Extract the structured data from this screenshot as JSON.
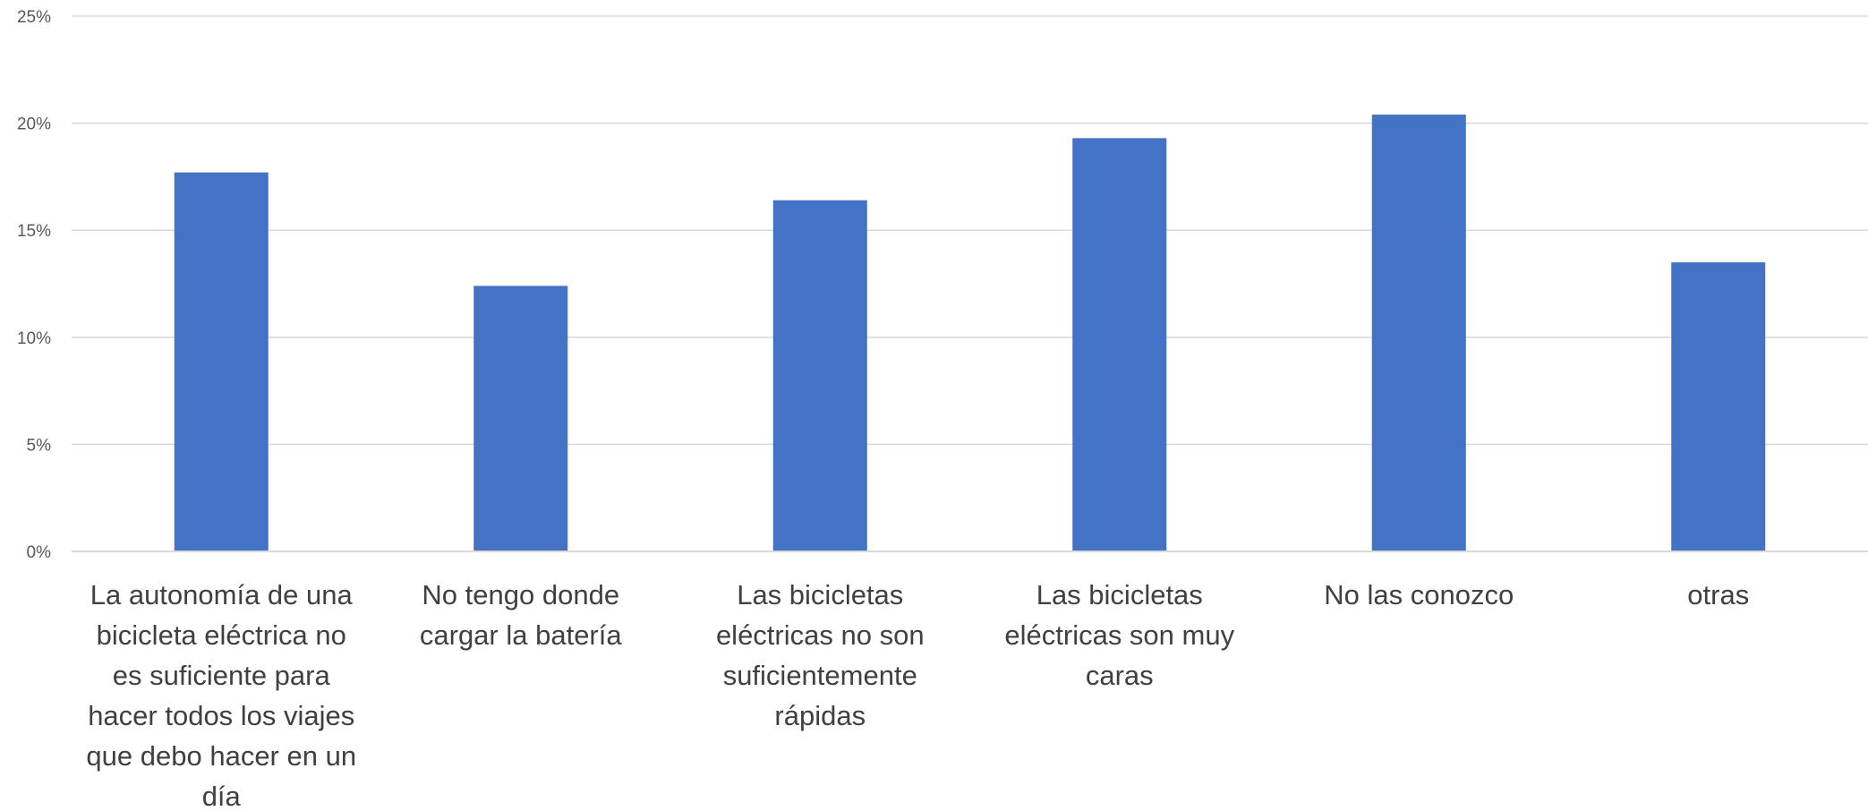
{
  "chart_data": {
    "type": "bar",
    "categories": [
      [
        "La autonomía de una",
        "bicicleta eléctrica no",
        "es suficiente para",
        "hacer todos los viajes",
        "que debo hacer en un",
        "día"
      ],
      [
        "No tengo donde",
        "cargar la batería"
      ],
      [
        "Las bicicletas",
        "eléctricas no son",
        "suficientemente",
        "rápidas"
      ],
      [
        "Las bicicletas",
        "eléctricas son muy",
        "caras"
      ],
      [
        "No las conozco"
      ],
      [
        "otras"
      ]
    ],
    "values": [
      17.7,
      12.4,
      16.4,
      19.3,
      20.4,
      13.5
    ],
    "ylim": [
      0,
      25
    ],
    "yticks": [
      0,
      5,
      10,
      15,
      20,
      25
    ],
    "ytick_labels": [
      "0%",
      "5%",
      "10%",
      "15%",
      "20%",
      "25%"
    ],
    "title": "",
    "xlabel": "",
    "ylabel": "",
    "grid": true,
    "colors": {
      "bar": "#4472c4"
    }
  }
}
